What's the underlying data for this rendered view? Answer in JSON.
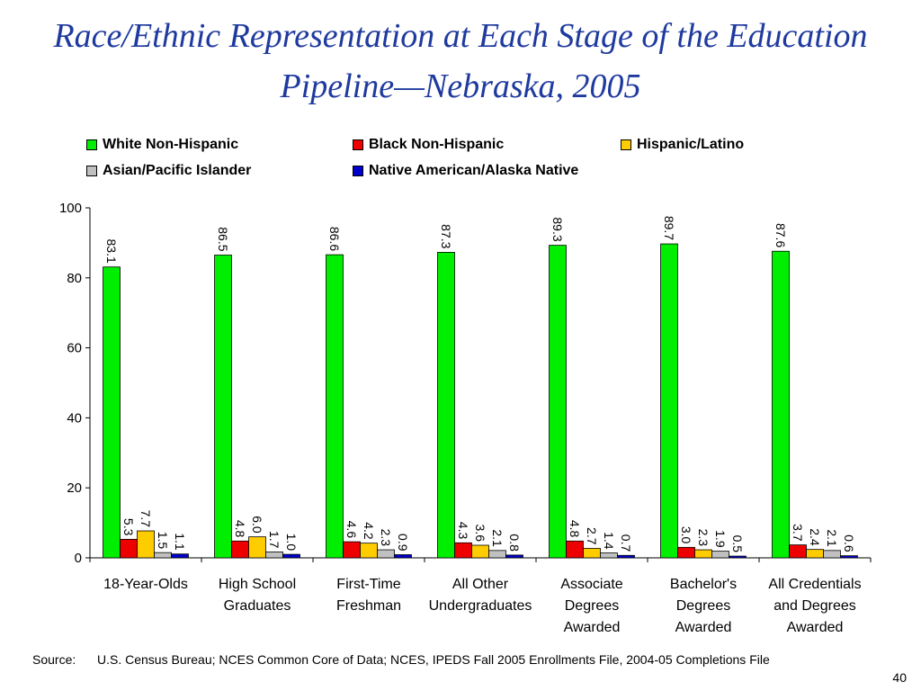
{
  "title": "Race/Ethnic Representation at Each Stage of the Education Pipeline—Nebraska, 2005",
  "legend": {
    "items": [
      {
        "label": "White Non-Hispanic",
        "color": "#00ee00"
      },
      {
        "label": "Black Non-Hispanic",
        "color": "#ee0000"
      },
      {
        "label": "Hispanic/Latino",
        "color": "#ffcc00"
      },
      {
        "label": "Asian/Pacific Islander",
        "color": "#c0c0c0"
      },
      {
        "label": "Native American/Alaska Native",
        "color": "#0000cc"
      }
    ]
  },
  "chart_data": {
    "type": "bar",
    "categories": [
      [
        "18-Year-Olds"
      ],
      [
        "High School",
        "Graduates"
      ],
      [
        "First-Time",
        "Freshman"
      ],
      [
        "All Other",
        "Undergraduates"
      ],
      [
        "Associate",
        "Degrees",
        "Awarded"
      ],
      [
        "Bachelor's",
        "Degrees",
        "Awarded"
      ],
      [
        "All Credentials",
        "and Degrees",
        "Awarded"
      ]
    ],
    "series": [
      {
        "name": "White Non-Hispanic",
        "color": "#00ee00",
        "values": [
          83.1,
          86.5,
          86.6,
          87.3,
          89.3,
          89.7,
          87.6
        ]
      },
      {
        "name": "Black Non-Hispanic",
        "color": "#ee0000",
        "values": [
          5.3,
          4.8,
          4.6,
          4.3,
          4.8,
          3.0,
          3.7
        ]
      },
      {
        "name": "Hispanic/Latino",
        "color": "#ffcc00",
        "values": [
          7.7,
          6.0,
          4.2,
          3.6,
          2.7,
          2.3,
          2.4
        ]
      },
      {
        "name": "Asian/Pacific Islander",
        "color": "#c0c0c0",
        "values": [
          1.5,
          1.7,
          2.3,
          2.1,
          1.4,
          1.9,
          2.1
        ]
      },
      {
        "name": "Native American/Alaska Native",
        "color": "#0000cc",
        "values": [
          1.1,
          1.0,
          0.9,
          0.8,
          0.7,
          0.5,
          0.6
        ]
      }
    ],
    "ylim": [
      0,
      100
    ],
    "yticks": [
      0,
      20,
      40,
      60,
      80,
      100
    ],
    "data_labels": true,
    "legend_position": "top"
  },
  "footer": {
    "source_label": "Source:",
    "source_text": "U.S. Census Bureau; NCES Common Core of Data; NCES, IPEDS Fall 2005 Enrollments File, 2004-05 Completions File",
    "page_number": "40"
  }
}
